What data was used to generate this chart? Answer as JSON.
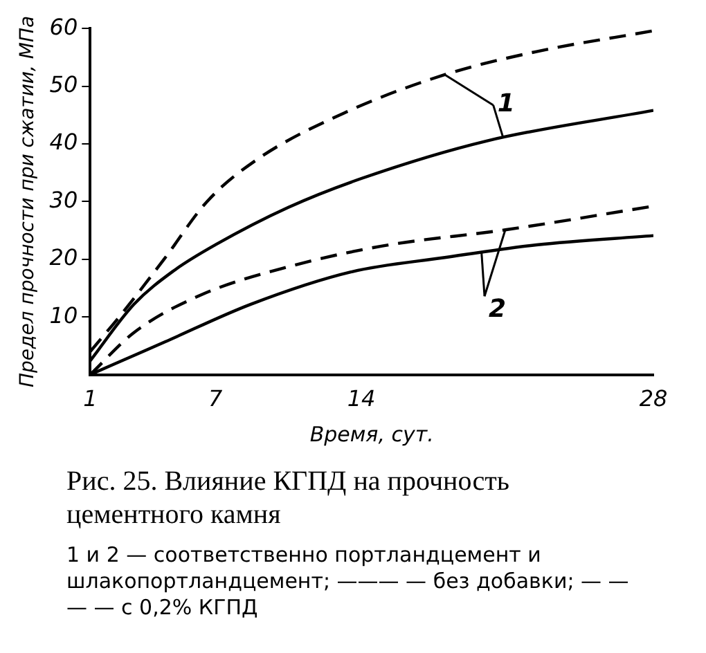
{
  "chart_data": {
    "type": "line",
    "title": "Рис. 25. Влияние КГПД на прочность цементного камня",
    "xlabel": "Время, сут.",
    "ylabel": "Предел прочности при сжатии, МПа",
    "xlim": [
      1,
      28
    ],
    "xticks": [
      1,
      7,
      14,
      28
    ],
    "ylim": [
      0,
      60
    ],
    "yticks": [
      10,
      20,
      30,
      40,
      50,
      60
    ],
    "grid": false,
    "legend": false,
    "marker": "none",
    "series": [
      {
        "color": "#000000",
        "line_style": "dashed",
        "x": [
          1,
          2.5,
          4.6,
          6.6,
          9,
          13.2,
          18,
          22.4,
          28
        ],
        "values": [
          4,
          10.5,
          20.3,
          30,
          37.3,
          45.4,
          52,
          56,
          59.6
        ]
      },
      {
        "color": "#000000",
        "line_style": "solid",
        "x": [
          1,
          3.1,
          5,
          7,
          10.5,
          14,
          20,
          28
        ],
        "values": [
          2.4,
          12.2,
          18,
          22.5,
          29,
          34,
          40.5,
          45.8
        ]
      },
      {
        "color": "#000000",
        "line_style": "dashed",
        "x": [
          1,
          3.1,
          6.3,
          10.5,
          15,
          20.9,
          28
        ],
        "values": [
          0,
          7.3,
          13.8,
          18.7,
          22.3,
          25.1,
          29.2
        ]
      },
      {
        "color": "#000000",
        "line_style": "solid",
        "x": [
          1,
          4.6,
          8.7,
          13.5,
          18,
          22.4,
          28
        ],
        "values": [
          0,
          5.7,
          12.2,
          17.8,
          20.3,
          22.5,
          24.1
        ]
      }
    ],
    "annotations": [
      {
        "text": "1",
        "x": 18,
        "y": 52
      },
      {
        "text": "2",
        "x": 20.9,
        "y": 25.1
      },
      "1 и 2 — соответственно портландцемент и шлакопортландцемент; ——— — без добавки; — — — — с 0,2% КГПД"
    ]
  }
}
